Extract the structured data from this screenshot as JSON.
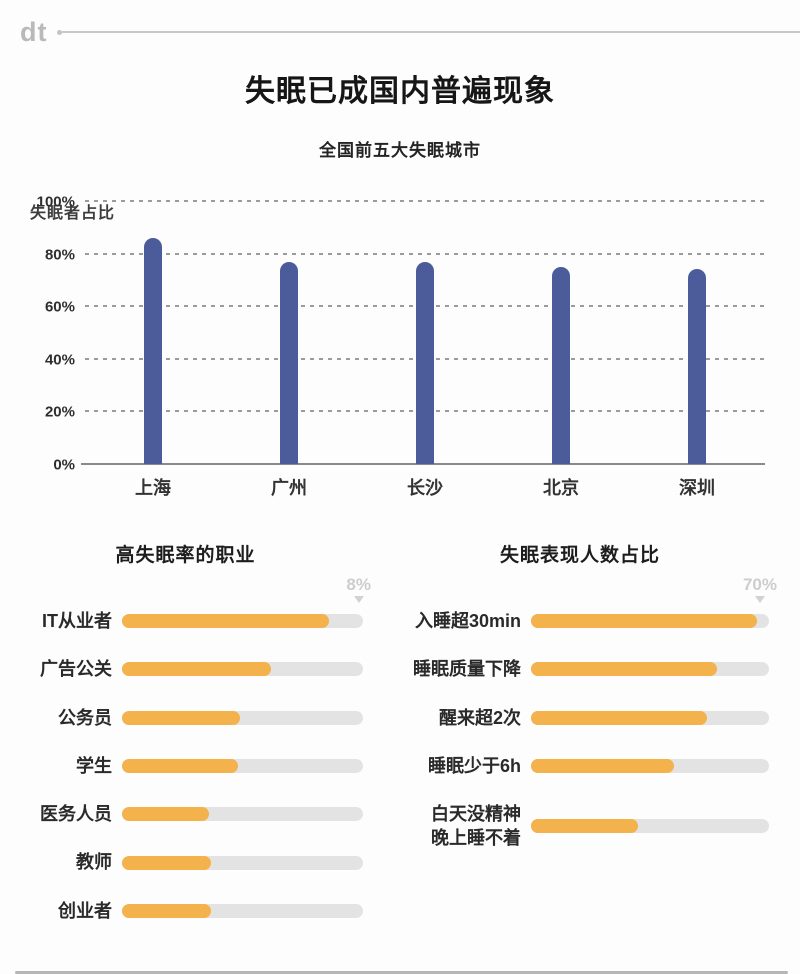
{
  "header": {
    "logo": "dt",
    "title": "失眠已成国内普遍现象",
    "subtitle": "全国前五大失眠城市"
  },
  "colors": {
    "city_bar": "#4c5b9a",
    "hbar_fill": "#f3b24b",
    "hbar_track": "#e3e3e3",
    "faint_scale_label": "#cdcdcd"
  },
  "chart_data": [
    {
      "type": "bar",
      "orientation": "vertical",
      "title": "全国前五大失眠城市",
      "ylabel": "失眠者占比",
      "categories": [
        "上海",
        "广州",
        "长沙",
        "北京",
        "深圳"
      ],
      "values": [
        86,
        77,
        77,
        75,
        74
      ],
      "unit": "%",
      "ylim": [
        0,
        100
      ],
      "yticks": [
        0,
        20,
        40,
        60,
        80,
        100
      ],
      "ytick_labels": [
        "0%",
        "20%",
        "40%",
        "60%",
        "80%",
        "100%"
      ],
      "grid": "dashed horizontal gridlines, solid baseline",
      "bar_color": "#4c5b9a"
    },
    {
      "type": "bar",
      "orientation": "horizontal",
      "title": "高失眠率的职业",
      "scale_max_label": "8%",
      "categories": [
        "IT从业者",
        "广告公关",
        "公务员",
        "学生",
        "医务人员",
        "教师",
        "创业者"
      ],
      "track_fill_percent": [
        86,
        62,
        49,
        48,
        36,
        37,
        37
      ],
      "bar_color": "#f3b24b",
      "track_color": "#e3e3e3"
    },
    {
      "type": "bar",
      "orientation": "horizontal",
      "title": "失眠表现人数占比",
      "scale_max_label": "70%",
      "categories": [
        "入睡超30min",
        "睡眠质量下降",
        "醒来超2次",
        "睡眠少于6h",
        "白天没精神\n晚上睡不着"
      ],
      "track_fill_percent": [
        95,
        78,
        74,
        60,
        45
      ],
      "bar_color": "#f3b24b",
      "track_color": "#e3e3e3"
    }
  ]
}
